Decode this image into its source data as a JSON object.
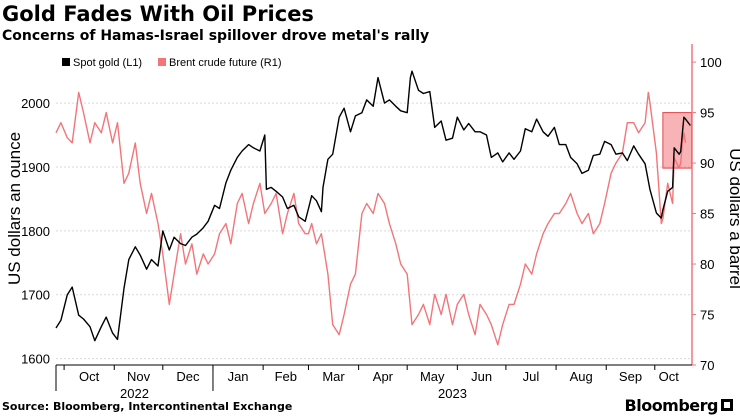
{
  "title": "Gold Fades With Oil Prices",
  "subtitle": "Concerns of Hamas-Israel spillover drove metal's rally",
  "source": "Source: Bloomberg, Intercontinental Exchange",
  "brand": "Bloomberg",
  "colors": {
    "gold": "#000000",
    "brent": "#f2757a",
    "right_axis": "#f2757a",
    "highlight": "#f2757a"
  },
  "chart_data": {
    "type": "line",
    "left_axis": {
      "label": "US dollars an ounce",
      "ticks": [
        1600,
        1700,
        1800,
        1900,
        2000
      ],
      "range": [
        1590,
        2080
      ]
    },
    "right_axis": {
      "label": "US dollars a barrel",
      "ticks": [
        70,
        75,
        80,
        85,
        90,
        95,
        100
      ],
      "range": [
        70,
        101
      ]
    },
    "x_months": [
      "Oct",
      "Nov",
      "Dec",
      "Jan",
      "Feb",
      "Mar",
      "Apr",
      "May",
      "Jun",
      "Jul",
      "Aug",
      "Sep",
      "Oct"
    ],
    "x_years": [
      "2022",
      "2023"
    ],
    "x_range": [
      "2022-09-26",
      "2023-10-20"
    ],
    "legend": [
      "Spot gold (L1)",
      "Brent crude future (R1)"
    ],
    "highlight": {
      "label": "",
      "from": "2023-10-06",
      "to": "2023-10-20",
      "y_range": [
        89.5,
        95
      ]
    },
    "series": [
      {
        "name": "Spot gold (L1)",
        "axis": "left",
        "points": [
          [
            "2022-09-26",
            1648
          ],
          [
            "2022-09-29",
            1660
          ],
          [
            "2022-10-03",
            1700
          ],
          [
            "2022-10-06",
            1712
          ],
          [
            "2022-10-10",
            1668
          ],
          [
            "2022-10-13",
            1662
          ],
          [
            "2022-10-17",
            1650
          ],
          [
            "2022-10-20",
            1628
          ],
          [
            "2022-10-24",
            1650
          ],
          [
            "2022-10-27",
            1665
          ],
          [
            "2022-10-31",
            1640
          ],
          [
            "2022-11-03",
            1630
          ],
          [
            "2022-11-07",
            1710
          ],
          [
            "2022-11-10",
            1755
          ],
          [
            "2022-11-14",
            1775
          ],
          [
            "2022-11-17",
            1762
          ],
          [
            "2022-11-21",
            1740
          ],
          [
            "2022-11-24",
            1755
          ],
          [
            "2022-11-28",
            1745
          ],
          [
            "2022-12-01",
            1800
          ],
          [
            "2022-12-05",
            1770
          ],
          [
            "2022-12-08",
            1790
          ],
          [
            "2022-12-12",
            1780
          ],
          [
            "2022-12-15",
            1777
          ],
          [
            "2022-12-19",
            1790
          ],
          [
            "2022-12-22",
            1795
          ],
          [
            "2022-12-26",
            1805
          ],
          [
            "2022-12-29",
            1815
          ],
          [
            "2023-01-02",
            1840
          ],
          [
            "2023-01-05",
            1835
          ],
          [
            "2023-01-09",
            1875
          ],
          [
            "2023-01-12",
            1895
          ],
          [
            "2023-01-16",
            1915
          ],
          [
            "2023-01-19",
            1925
          ],
          [
            "2023-01-23",
            1935
          ],
          [
            "2023-01-26",
            1930
          ],
          [
            "2023-01-30",
            1925
          ],
          [
            "2023-02-02",
            1950
          ],
          [
            "2023-02-03",
            1865
          ],
          [
            "2023-02-06",
            1868
          ],
          [
            "2023-02-09",
            1862
          ],
          [
            "2023-02-13",
            1853
          ],
          [
            "2023-02-16",
            1835
          ],
          [
            "2023-02-20",
            1840
          ],
          [
            "2023-02-23",
            1822
          ],
          [
            "2023-02-27",
            1815
          ],
          [
            "2023-03-01",
            1835
          ],
          [
            "2023-03-03",
            1855
          ],
          [
            "2023-03-06",
            1847
          ],
          [
            "2023-03-09",
            1830
          ],
          [
            "2023-03-10",
            1868
          ],
          [
            "2023-03-13",
            1912
          ],
          [
            "2023-03-16",
            1920
          ],
          [
            "2023-03-20",
            1978
          ],
          [
            "2023-03-23",
            1992
          ],
          [
            "2023-03-27",
            1955
          ],
          [
            "2023-03-30",
            1980
          ],
          [
            "2023-04-03",
            1985
          ],
          [
            "2023-04-06",
            2005
          ],
          [
            "2023-04-10",
            1995
          ],
          [
            "2023-04-13",
            2040
          ],
          [
            "2023-04-17",
            2000
          ],
          [
            "2023-04-20",
            2005
          ],
          [
            "2023-04-24",
            1995
          ],
          [
            "2023-04-27",
            1988
          ],
          [
            "2023-05-01",
            1985
          ],
          [
            "2023-05-03",
            2040
          ],
          [
            "2023-05-04",
            2050
          ],
          [
            "2023-05-08",
            2020
          ],
          [
            "2023-05-11",
            2015
          ],
          [
            "2023-05-15",
            2018
          ],
          [
            "2023-05-18",
            1962
          ],
          [
            "2023-05-22",
            1972
          ],
          [
            "2023-05-25",
            1942
          ],
          [
            "2023-05-29",
            1945
          ],
          [
            "2023-06-01",
            1978
          ],
          [
            "2023-06-05",
            1958
          ],
          [
            "2023-06-08",
            1968
          ],
          [
            "2023-06-12",
            1955
          ],
          [
            "2023-06-15",
            1955
          ],
          [
            "2023-06-19",
            1950
          ],
          [
            "2023-06-22",
            1915
          ],
          [
            "2023-06-26",
            1922
          ],
          [
            "2023-06-29",
            1908
          ],
          [
            "2023-07-03",
            1922
          ],
          [
            "2023-07-06",
            1912
          ],
          [
            "2023-07-10",
            1925
          ],
          [
            "2023-07-13",
            1960
          ],
          [
            "2023-07-17",
            1955
          ],
          [
            "2023-07-20",
            1975
          ],
          [
            "2023-07-24",
            1955
          ],
          [
            "2023-07-27",
            1948
          ],
          [
            "2023-07-31",
            1962
          ],
          [
            "2023-08-03",
            1935
          ],
          [
            "2023-08-07",
            1935
          ],
          [
            "2023-08-10",
            1915
          ],
          [
            "2023-08-14",
            1905
          ],
          [
            "2023-08-17",
            1890
          ],
          [
            "2023-08-21",
            1895
          ],
          [
            "2023-08-24",
            1918
          ],
          [
            "2023-08-28",
            1920
          ],
          [
            "2023-08-31",
            1940
          ],
          [
            "2023-09-04",
            1935
          ],
          [
            "2023-09-07",
            1920
          ],
          [
            "2023-09-11",
            1922
          ],
          [
            "2023-09-14",
            1910
          ],
          [
            "2023-09-18",
            1933
          ],
          [
            "2023-09-21",
            1920
          ],
          [
            "2023-09-25",
            1905
          ],
          [
            "2023-09-28",
            1865
          ],
          [
            "2023-10-02",
            1828
          ],
          [
            "2023-10-05",
            1820
          ],
          [
            "2023-10-06",
            1833
          ],
          [
            "2023-10-09",
            1862
          ],
          [
            "2023-10-12",
            1868
          ],
          [
            "2023-10-13",
            1930
          ],
          [
            "2023-10-16",
            1920
          ],
          [
            "2023-10-17",
            1924
          ],
          [
            "2023-10-18",
            1952
          ],
          [
            "2023-10-19",
            1978
          ],
          [
            "2023-10-20",
            1975
          ],
          [
            "2023-10-23",
            1965
          ]
        ]
      },
      {
        "name": "Brent crude future (R1)",
        "axis": "right",
        "points": [
          [
            "2022-09-26",
            93
          ],
          [
            "2022-09-29",
            94
          ],
          [
            "2022-10-03",
            92.5
          ],
          [
            "2022-10-06",
            92
          ],
          [
            "2022-10-10",
            97
          ],
          [
            "2022-10-13",
            95
          ],
          [
            "2022-10-17",
            92
          ],
          [
            "2022-10-20",
            94
          ],
          [
            "2022-10-24",
            93
          ],
          [
            "2022-10-27",
            95
          ],
          [
            "2022-10-31",
            92
          ],
          [
            "2022-11-03",
            94
          ],
          [
            "2022-11-07",
            88
          ],
          [
            "2022-11-10",
            89
          ],
          [
            "2022-11-14",
            92
          ],
          [
            "2022-11-17",
            88
          ],
          [
            "2022-11-21",
            85
          ],
          [
            "2022-11-24",
            87
          ],
          [
            "2022-11-28",
            84
          ],
          [
            "2022-12-01",
            81
          ],
          [
            "2022-12-05",
            76
          ],
          [
            "2022-12-08",
            79
          ],
          [
            "2022-12-12",
            83
          ],
          [
            "2022-12-15",
            80
          ],
          [
            "2022-12-19",
            82
          ],
          [
            "2022-12-22",
            79
          ],
          [
            "2022-12-26",
            81
          ],
          [
            "2022-12-29",
            80
          ],
          [
            "2023-01-02",
            81
          ],
          [
            "2023-01-05",
            83
          ],
          [
            "2023-01-09",
            84
          ],
          [
            "2023-01-12",
            82
          ],
          [
            "2023-01-16",
            86
          ],
          [
            "2023-01-19",
            87
          ],
          [
            "2023-01-23",
            84
          ],
          [
            "2023-01-26",
            86
          ],
          [
            "2023-01-30",
            88
          ],
          [
            "2023-02-02",
            85
          ],
          [
            "2023-02-06",
            86
          ],
          [
            "2023-02-09",
            87
          ],
          [
            "2023-02-13",
            83
          ],
          [
            "2023-02-16",
            85
          ],
          [
            "2023-02-20",
            87
          ],
          [
            "2023-02-23",
            84
          ],
          [
            "2023-02-27",
            83
          ],
          [
            "2023-03-01",
            83
          ],
          [
            "2023-03-03",
            84
          ],
          [
            "2023-03-06",
            82
          ],
          [
            "2023-03-09",
            83
          ],
          [
            "2023-03-13",
            79
          ],
          [
            "2023-03-16",
            74
          ],
          [
            "2023-03-20",
            73
          ],
          [
            "2023-03-23",
            75
          ],
          [
            "2023-03-27",
            78
          ],
          [
            "2023-03-30",
            79
          ],
          [
            "2023-04-03",
            85
          ],
          [
            "2023-04-06",
            86
          ],
          [
            "2023-04-10",
            85
          ],
          [
            "2023-04-13",
            87
          ],
          [
            "2023-04-17",
            86
          ],
          [
            "2023-04-20",
            84
          ],
          [
            "2023-04-24",
            82
          ],
          [
            "2023-04-27",
            80
          ],
          [
            "2023-05-01",
            79
          ],
          [
            "2023-05-04",
            74
          ],
          [
            "2023-05-08",
            75
          ],
          [
            "2023-05-11",
            76
          ],
          [
            "2023-05-15",
            74
          ],
          [
            "2023-05-18",
            77
          ],
          [
            "2023-05-22",
            75
          ],
          [
            "2023-05-25",
            77
          ],
          [
            "2023-05-29",
            74
          ],
          [
            "2023-06-01",
            76
          ],
          [
            "2023-06-05",
            77
          ],
          [
            "2023-06-08",
            75
          ],
          [
            "2023-06-12",
            73
          ],
          [
            "2023-06-15",
            76
          ],
          [
            "2023-06-19",
            75
          ],
          [
            "2023-06-22",
            74
          ],
          [
            "2023-06-26",
            72
          ],
          [
            "2023-06-29",
            74
          ],
          [
            "2023-07-03",
            76
          ],
          [
            "2023-07-06",
            76
          ],
          [
            "2023-07-10",
            78
          ],
          [
            "2023-07-13",
            80
          ],
          [
            "2023-07-17",
            79
          ],
          [
            "2023-07-20",
            81
          ],
          [
            "2023-07-24",
            83
          ],
          [
            "2023-07-27",
            84
          ],
          [
            "2023-07-31",
            85
          ],
          [
            "2023-08-03",
            85
          ],
          [
            "2023-08-07",
            86
          ],
          [
            "2023-08-10",
            87
          ],
          [
            "2023-08-14",
            85
          ],
          [
            "2023-08-17",
            84
          ],
          [
            "2023-08-21",
            85
          ],
          [
            "2023-08-24",
            83
          ],
          [
            "2023-08-28",
            84
          ],
          [
            "2023-08-31",
            86
          ],
          [
            "2023-09-04",
            89
          ],
          [
            "2023-09-07",
            90
          ],
          [
            "2023-09-11",
            91
          ],
          [
            "2023-09-14",
            94
          ],
          [
            "2023-09-18",
            94
          ],
          [
            "2023-09-21",
            93
          ],
          [
            "2023-09-25",
            94
          ],
          [
            "2023-09-27",
            97
          ],
          [
            "2023-09-28",
            96
          ],
          [
            "2023-10-02",
            91
          ],
          [
            "2023-10-05",
            84
          ],
          [
            "2023-10-06",
            84.5
          ],
          [
            "2023-10-09",
            88
          ],
          [
            "2023-10-12",
            86
          ],
          [
            "2023-10-13",
            90.5
          ],
          [
            "2023-10-16",
            89.5
          ],
          [
            "2023-10-17",
            90
          ],
          [
            "2023-10-18",
            92
          ],
          [
            "2023-10-19",
            93
          ],
          [
            "2023-10-20",
            92
          ]
        ]
      }
    ]
  }
}
